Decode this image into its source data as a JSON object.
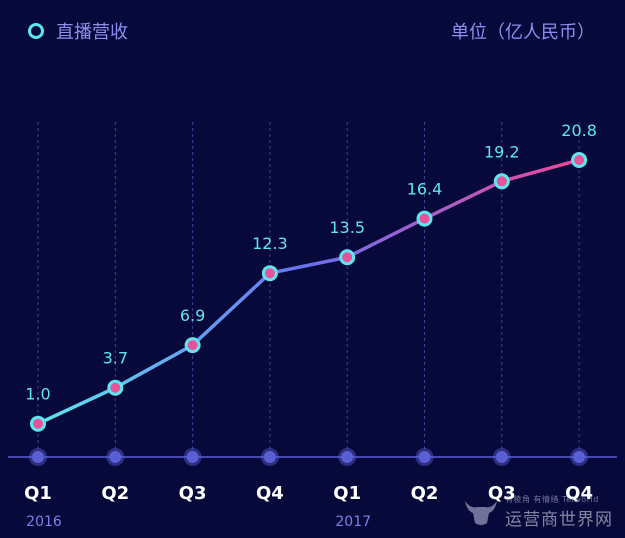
{
  "legend": {
    "label": "直播营收"
  },
  "unit_label": "单位（亿人民币）",
  "watermark": {
    "line1": "有棱角 有情绪 Telworld",
    "line2": "运营商世界网"
  },
  "colors": {
    "background": "#07093a",
    "gridline": "#3b3f9a",
    "axis": "#5a5fd6",
    "label_text": "#5ee6ee",
    "year_text": "#7b7fe8",
    "tick_text": "#ffffff",
    "point_fill": "#e8529a",
    "point_ring": "#5ee6ee",
    "axis_dot": "#5a5fd6",
    "line_start": "#5ee6ee",
    "line_mid": "#6a6ff0",
    "line_end": "#f0489a"
  },
  "chart_data": {
    "type": "line",
    "categories": [
      "Q1",
      "Q2",
      "Q3",
      "Q4",
      "Q1",
      "Q2",
      "Q3",
      "Q4"
    ],
    "years": [
      {
        "label": "2016",
        "category_index": 0
      },
      {
        "label": "2017",
        "category_index": 4
      }
    ],
    "series": [
      {
        "name": "直播营收",
        "values": [
          1.0,
          3.7,
          6.9,
          12.3,
          13.5,
          16.4,
          19.2,
          20.8
        ]
      }
    ],
    "value_labels": [
      "1.0",
      "3.7",
      "6.9",
      "12.3",
      "13.5",
      "16.4",
      "19.2",
      "20.8"
    ],
    "ylim": [
      -1.5,
      20.8
    ],
    "grid": "vertical dashed",
    "legend_position": "top-left"
  }
}
